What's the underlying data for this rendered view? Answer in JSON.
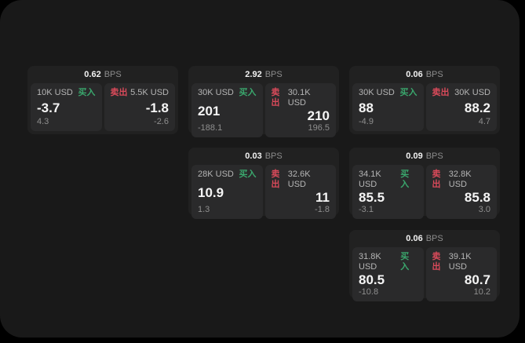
{
  "app": {
    "labels": {
      "bps_unit": "BPS",
      "buy": "买入",
      "sell": "卖出"
    },
    "colors": {
      "outside_bg": "#000000",
      "window_bg": "#191919",
      "card_bg": "#212121",
      "tile_bg": "#2a2a2b",
      "buy_green": "#3aa76d",
      "sell_red": "#d94a5a",
      "primary_text": "#f2f2f2",
      "muted_text": "#8d8d8d"
    }
  },
  "cards": [
    {
      "bps": "0.62",
      "buy": {
        "amount": "10K USD",
        "price": "-3.7",
        "delta": "4.3"
      },
      "sell": {
        "amount": "5.5K USD",
        "price": "-1.8",
        "delta": "-2.6"
      }
    },
    {
      "bps": "2.92",
      "buy": {
        "amount": "30K USD",
        "price": "201",
        "delta": "-188.1"
      },
      "sell": {
        "amount": "30.1K USD",
        "price": "210",
        "delta": "196.5"
      }
    },
    {
      "bps": "0.06",
      "buy": {
        "amount": "30K USD",
        "price": "88",
        "delta": "-4.9"
      },
      "sell": {
        "amount": "30K USD",
        "price": "88.2",
        "delta": "4.7"
      }
    },
    {
      "bps": "0.03",
      "buy": {
        "amount": "28K USD",
        "price": "10.9",
        "delta": "1.3"
      },
      "sell": {
        "amount": "32.6K USD",
        "price": "11",
        "delta": "-1.8"
      }
    },
    {
      "bps": "0.09",
      "buy": {
        "amount": "34.1K USD",
        "price": "85.5",
        "delta": "-3.1"
      },
      "sell": {
        "amount": "32.8K USD",
        "price": "85.8",
        "delta": "3.0"
      }
    },
    {
      "bps": "0.06",
      "buy": {
        "amount": "31.8K USD",
        "price": "80.5",
        "delta": "-10.8"
      },
      "sell": {
        "amount": "39.1K USD",
        "price": "80.7",
        "delta": "10.2"
      }
    }
  ]
}
